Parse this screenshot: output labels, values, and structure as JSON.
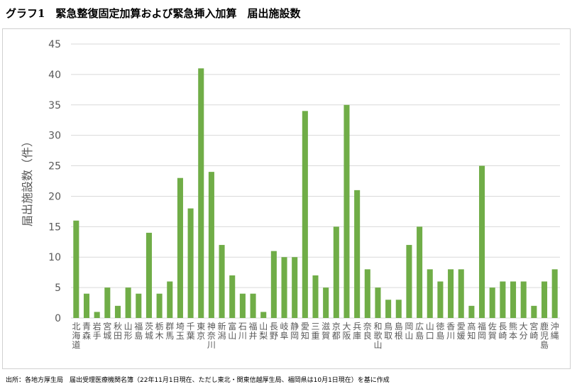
{
  "title": "グラフ1　緊急整復固定加算および緊急挿入加算　届出施設数",
  "source": "出所：各地方厚生局　届出受理医療機関名簿（22年11月1日現在、ただし東北・関東信越厚生局、福岡県は10月1日現在）を基に作成",
  "colors": {
    "bar": "#70AD47",
    "grid": "#d9d9d9",
    "tick_text": "#595959"
  },
  "chart_data": {
    "type": "bar",
    "ylabel": "届出施設数（件）",
    "xlabel": "",
    "ylim": [
      0,
      45
    ],
    "yticks": [
      0,
      5,
      10,
      15,
      20,
      25,
      30,
      35,
      40,
      45
    ],
    "grid": true,
    "categories": [
      "北海道",
      "青森",
      "岩手",
      "宮城",
      "秋田",
      "山形",
      "福島",
      "茨城",
      "栃木",
      "群馬",
      "埼玉",
      "千葉",
      "東京",
      "神奈川",
      "新潟",
      "富山",
      "石川",
      "福井",
      "山梨",
      "長野",
      "岐阜",
      "静岡",
      "愛知",
      "三重",
      "滋賀",
      "京都",
      "大阪",
      "兵庫",
      "奈良",
      "和歌山",
      "鳥取",
      "島根",
      "岡山",
      "広島",
      "山口",
      "徳島",
      "香川",
      "愛媛",
      "高知",
      "福岡",
      "佐賀",
      "長崎",
      "熊本",
      "大分",
      "宮崎",
      "鹿児島",
      "沖縄"
    ],
    "values": [
      16,
      4,
      1,
      5,
      2,
      5,
      4,
      14,
      4,
      6,
      23,
      18,
      41,
      24,
      12,
      7,
      4,
      4,
      1,
      11,
      10,
      10,
      34,
      7,
      5,
      15,
      35,
      21,
      8,
      5,
      3,
      3,
      12,
      15,
      8,
      6,
      8,
      8,
      2,
      25,
      5,
      6,
      6,
      6,
      2,
      6,
      8
    ]
  }
}
